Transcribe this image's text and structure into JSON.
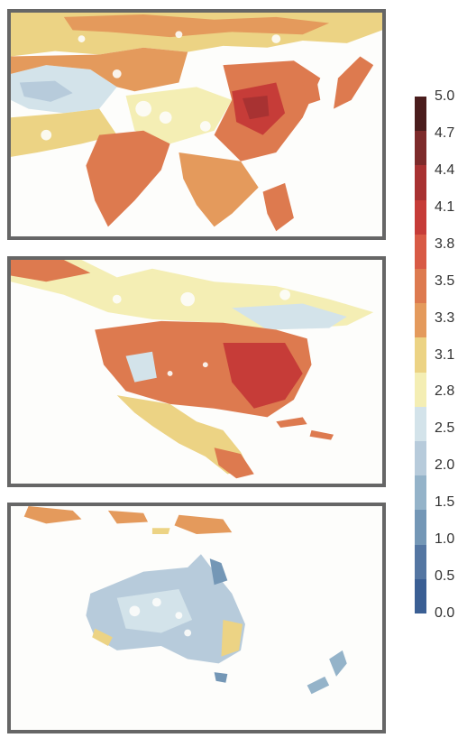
{
  "panels": [
    {
      "region": "asia"
    },
    {
      "region": "north-america"
    },
    {
      "region": "oceania"
    }
  ],
  "colorbar": {
    "ticks": [
      "5.0",
      "4.7",
      "4.4",
      "4.1",
      "3.8",
      "3.5",
      "3.3",
      "3.1",
      "2.8",
      "2.5",
      "2.0",
      "1.5",
      "1.0",
      "0.5",
      "0.0"
    ],
    "colors": [
      "#4a1d1d",
      "#7d2b2b",
      "#a83232",
      "#c63c38",
      "#d85a45",
      "#dd7a4f",
      "#e49a5c",
      "#ecd384",
      "#f4eeb4",
      "#d3e3ea",
      "#b7cbdb",
      "#94b3c9",
      "#7497b6",
      "#5476a2",
      "#3b5f94"
    ]
  }
}
